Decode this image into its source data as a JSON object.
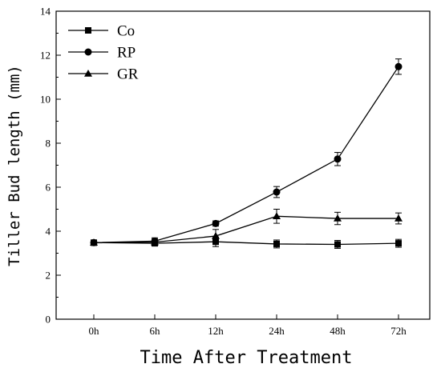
{
  "chart_data": {
    "type": "line",
    "title": "",
    "xlabel": "Time After Treatment",
    "ylabel": "Tiller Bud length (mm)",
    "categories": [
      "0h",
      "6h",
      "12h",
      "24h",
      "48h",
      "72h"
    ],
    "ylim": [
      0,
      14
    ],
    "yticks": [
      "0",
      "2",
      "4",
      "6",
      "8",
      "10",
      "12",
      "14"
    ],
    "grid": false,
    "legend_position": "top-left",
    "series": [
      {
        "name": "Co",
        "marker": "square",
        "values": [
          3.48,
          3.45,
          3.52,
          3.42,
          3.4,
          3.45
        ],
        "errors": [
          0.12,
          0.12,
          0.22,
          0.18,
          0.18,
          0.18
        ]
      },
      {
        "name": "RP",
        "marker": "circle",
        "values": [
          3.48,
          3.55,
          4.35,
          5.78,
          7.28,
          11.48
        ],
        "errors": [
          0.12,
          0.15,
          0.12,
          0.25,
          0.3,
          0.35
        ]
      },
      {
        "name": "GR",
        "marker": "triangle",
        "values": [
          3.48,
          3.5,
          3.78,
          4.68,
          4.58,
          4.58
        ],
        "errors": [
          0.12,
          0.15,
          0.3,
          0.32,
          0.28,
          0.25
        ]
      }
    ]
  }
}
